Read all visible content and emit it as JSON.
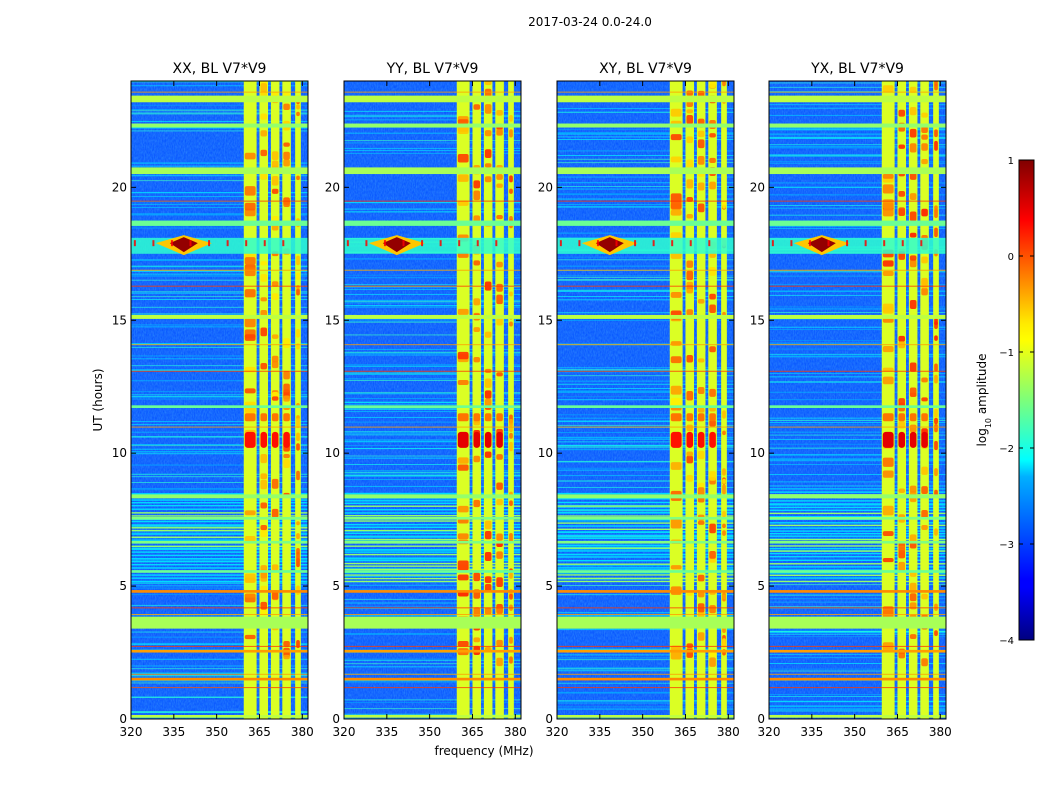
{
  "chart_data": {
    "type": "heatmap",
    "suptitle": "2017-03-24 0.0-24.0",
    "xlabel": "frequency (MHz)",
    "ylabel": "UT (hours)",
    "xlim": [
      320,
      382
    ],
    "ylim": [
      0,
      24
    ],
    "xticks": [
      320,
      335,
      350,
      365,
      380
    ],
    "xtick_labels": [
      "320",
      "335",
      "350",
      "365",
      "380"
    ],
    "yticks": [
      0,
      5,
      10,
      15,
      20
    ],
    "ytick_labels": [
      "0",
      "5",
      "10",
      "15",
      "20"
    ],
    "colormap": "jet",
    "panels": [
      {
        "title": "XX, BL V7*V9",
        "variant": 0
      },
      {
        "title": "YY, BL V7*V9",
        "variant": 1
      },
      {
        "title": "XY, BL V7*V9",
        "variant": 2
      },
      {
        "title": "YX, BL V7*V9",
        "variant": 3
      }
    ],
    "rfi_channels_mhz": [
      {
        "start": 359.5,
        "end": 364.0
      },
      {
        "start": 365.0,
        "end": 368.0
      },
      {
        "start": 369.0,
        "end": 372.0
      },
      {
        "start": 373.0,
        "end": 376.0
      },
      {
        "start": 377.5,
        "end": 379.5
      }
    ],
    "bright_bands_ut": [
      {
        "start": 23.2,
        "end": 23.45,
        "level": -1.2
      },
      {
        "start": 22.25,
        "end": 22.4,
        "level": -1.4
      },
      {
        "start": 20.5,
        "end": 20.75,
        "level": -1.3
      },
      {
        "start": 18.55,
        "end": 18.75,
        "level": -1.6
      },
      {
        "start": 15.05,
        "end": 15.2,
        "level": -1.2
      },
      {
        "start": 11.7,
        "end": 11.8,
        "level": -1.6
      },
      {
        "start": 8.3,
        "end": 8.45,
        "level": -1.4
      },
      {
        "start": 7.5,
        "end": 7.6,
        "level": -1.5
      },
      {
        "start": 6.6,
        "end": 6.7,
        "level": -1.5
      },
      {
        "start": 5.5,
        "end": 5.6,
        "level": -1.6
      },
      {
        "start": 4.75,
        "end": 4.85,
        "level": -0.3
      },
      {
        "start": 3.4,
        "end": 3.85,
        "level": -1.3
      },
      {
        "start": 2.5,
        "end": 2.6,
        "level": -0.4
      },
      {
        "start": 1.45,
        "end": 1.55,
        "level": -0.3
      },
      {
        "start": 0.05,
        "end": 0.15,
        "level": -1.2
      }
    ],
    "strong_events": [
      {
        "freq": 338.5,
        "ut": 17.9,
        "level": 0.9
      },
      {
        "freq": 368.0,
        "ut": 10.5,
        "level": 0.4
      },
      {
        "freq": 366.0,
        "ut": 13.6,
        "level": 0.2
      }
    ],
    "colorbar": {
      "label": "log10 amplitude",
      "label_main": "log",
      "label_sub": "10",
      "label_tail": " amplitude",
      "range": [
        -4,
        1
      ],
      "ticks": [
        1,
        0,
        -1,
        -2,
        -3,
        -4
      ],
      "tick_labels": [
        "1",
        "0",
        "−1",
        "−2",
        "−3",
        "−4"
      ]
    }
  }
}
